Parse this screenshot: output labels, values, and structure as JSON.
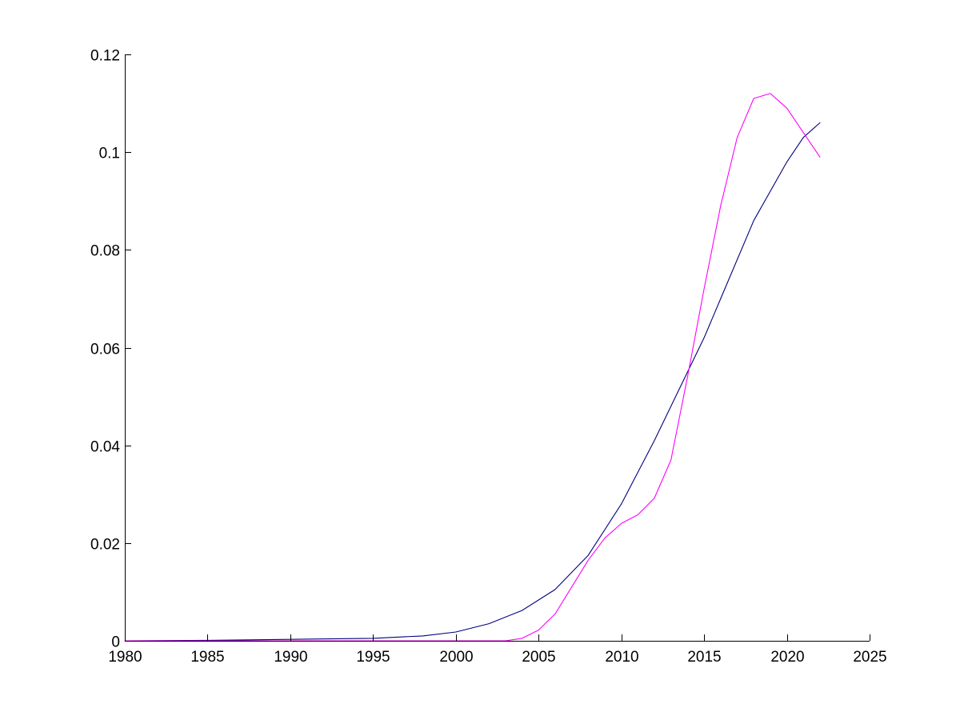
{
  "chart_data": {
    "type": "line",
    "title": "",
    "xlabel": "",
    "ylabel": "",
    "xlim": [
      1980,
      2025
    ],
    "ylim": [
      0,
      0.12
    ],
    "grid": false,
    "legend": "none",
    "x_ticks": [
      "1980",
      "1985",
      "1990",
      "1995",
      "2000",
      "2005",
      "2010",
      "2015",
      "2020",
      "2025"
    ],
    "y_ticks": [
      "0",
      "0.02",
      "0.04",
      "0.06",
      "0.08",
      "0.1",
      "0.12"
    ],
    "series": [
      {
        "color": "#000080",
        "x": [
          1980,
          1985,
          1990,
          1995,
          1998,
          2000,
          2002,
          2004,
          2006,
          2008,
          2010,
          2012,
          2014,
          2015,
          2016,
          2018,
          2020,
          2021,
          2022
        ],
        "y": [
          0.0,
          0.0001,
          0.0003,
          0.0005,
          0.001,
          0.0018,
          0.0035,
          0.0062,
          0.0105,
          0.0175,
          0.028,
          0.041,
          0.055,
          0.062,
          0.07,
          0.086,
          0.098,
          0.103,
          0.106
        ]
      },
      {
        "color": "#ff00ff",
        "x": [
          1980,
          2000,
          2003,
          2004,
          2005,
          2006,
          2007,
          2008,
          2009,
          2010,
          2011,
          2012,
          2013,
          2014,
          2015,
          2016,
          2017,
          2018,
          2019,
          2020,
          2021,
          2022
        ],
        "y": [
          0.0,
          0.0,
          0.0,
          0.0005,
          0.0022,
          0.0055,
          0.011,
          0.0165,
          0.021,
          0.024,
          0.0258,
          0.0292,
          0.037,
          0.054,
          0.072,
          0.089,
          0.103,
          0.111,
          0.112,
          0.109,
          0.104,
          0.099
        ]
      }
    ]
  }
}
